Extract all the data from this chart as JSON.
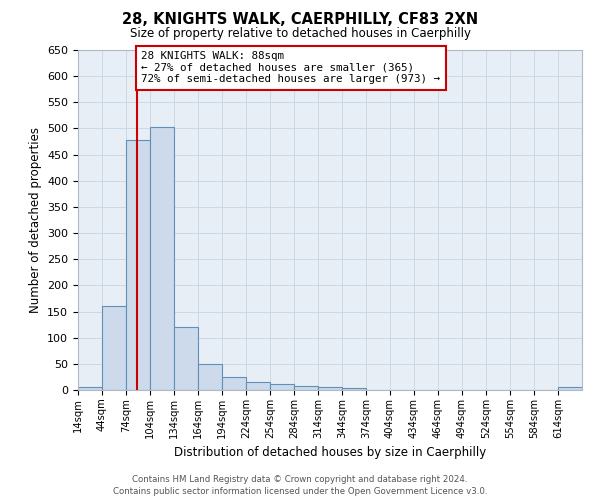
{
  "title": "28, KNIGHTS WALK, CAERPHILLY, CF83 2XN",
  "subtitle": "Size of property relative to detached houses in Caerphilly",
  "xlabel": "Distribution of detached houses by size in Caerphilly",
  "ylabel": "Number of detached properties",
  "bin_starts": [
    14,
    44,
    74,
    104,
    134,
    164,
    194,
    224,
    254,
    284,
    314,
    344,
    374,
    404,
    434,
    464,
    494,
    524,
    554,
    584,
    614
  ],
  "bin_width": 30,
  "bar_heights": [
    5,
    160,
    478,
    503,
    120,
    50,
    25,
    15,
    12,
    8,
    5,
    3,
    0,
    0,
    0,
    0,
    0,
    0,
    0,
    0,
    5
  ],
  "bar_color": "#ccdaeb",
  "bar_edge_color": "#6090b8",
  "grid_color": "#c5d5e5",
  "property_size": 88,
  "red_line_color": "#cc0000",
  "annotation_text": "28 KNIGHTS WALK: 88sqm\n← 27% of detached houses are smaller (365)\n72% of semi-detached houses are larger (973) →",
  "annotation_box_color": "#ffffff",
  "annotation_box_edge": "#cc0000",
  "ylim": [
    0,
    650
  ],
  "yticks": [
    0,
    50,
    100,
    150,
    200,
    250,
    300,
    350,
    400,
    450,
    500,
    550,
    600,
    650
  ],
  "footer_line1": "Contains HM Land Registry data © Crown copyright and database right 2024.",
  "footer_line2": "Contains public sector information licensed under the Open Government Licence v3.0.",
  "bg_color": "#e8eef5",
  "fig_bg_color": "#ffffff"
}
